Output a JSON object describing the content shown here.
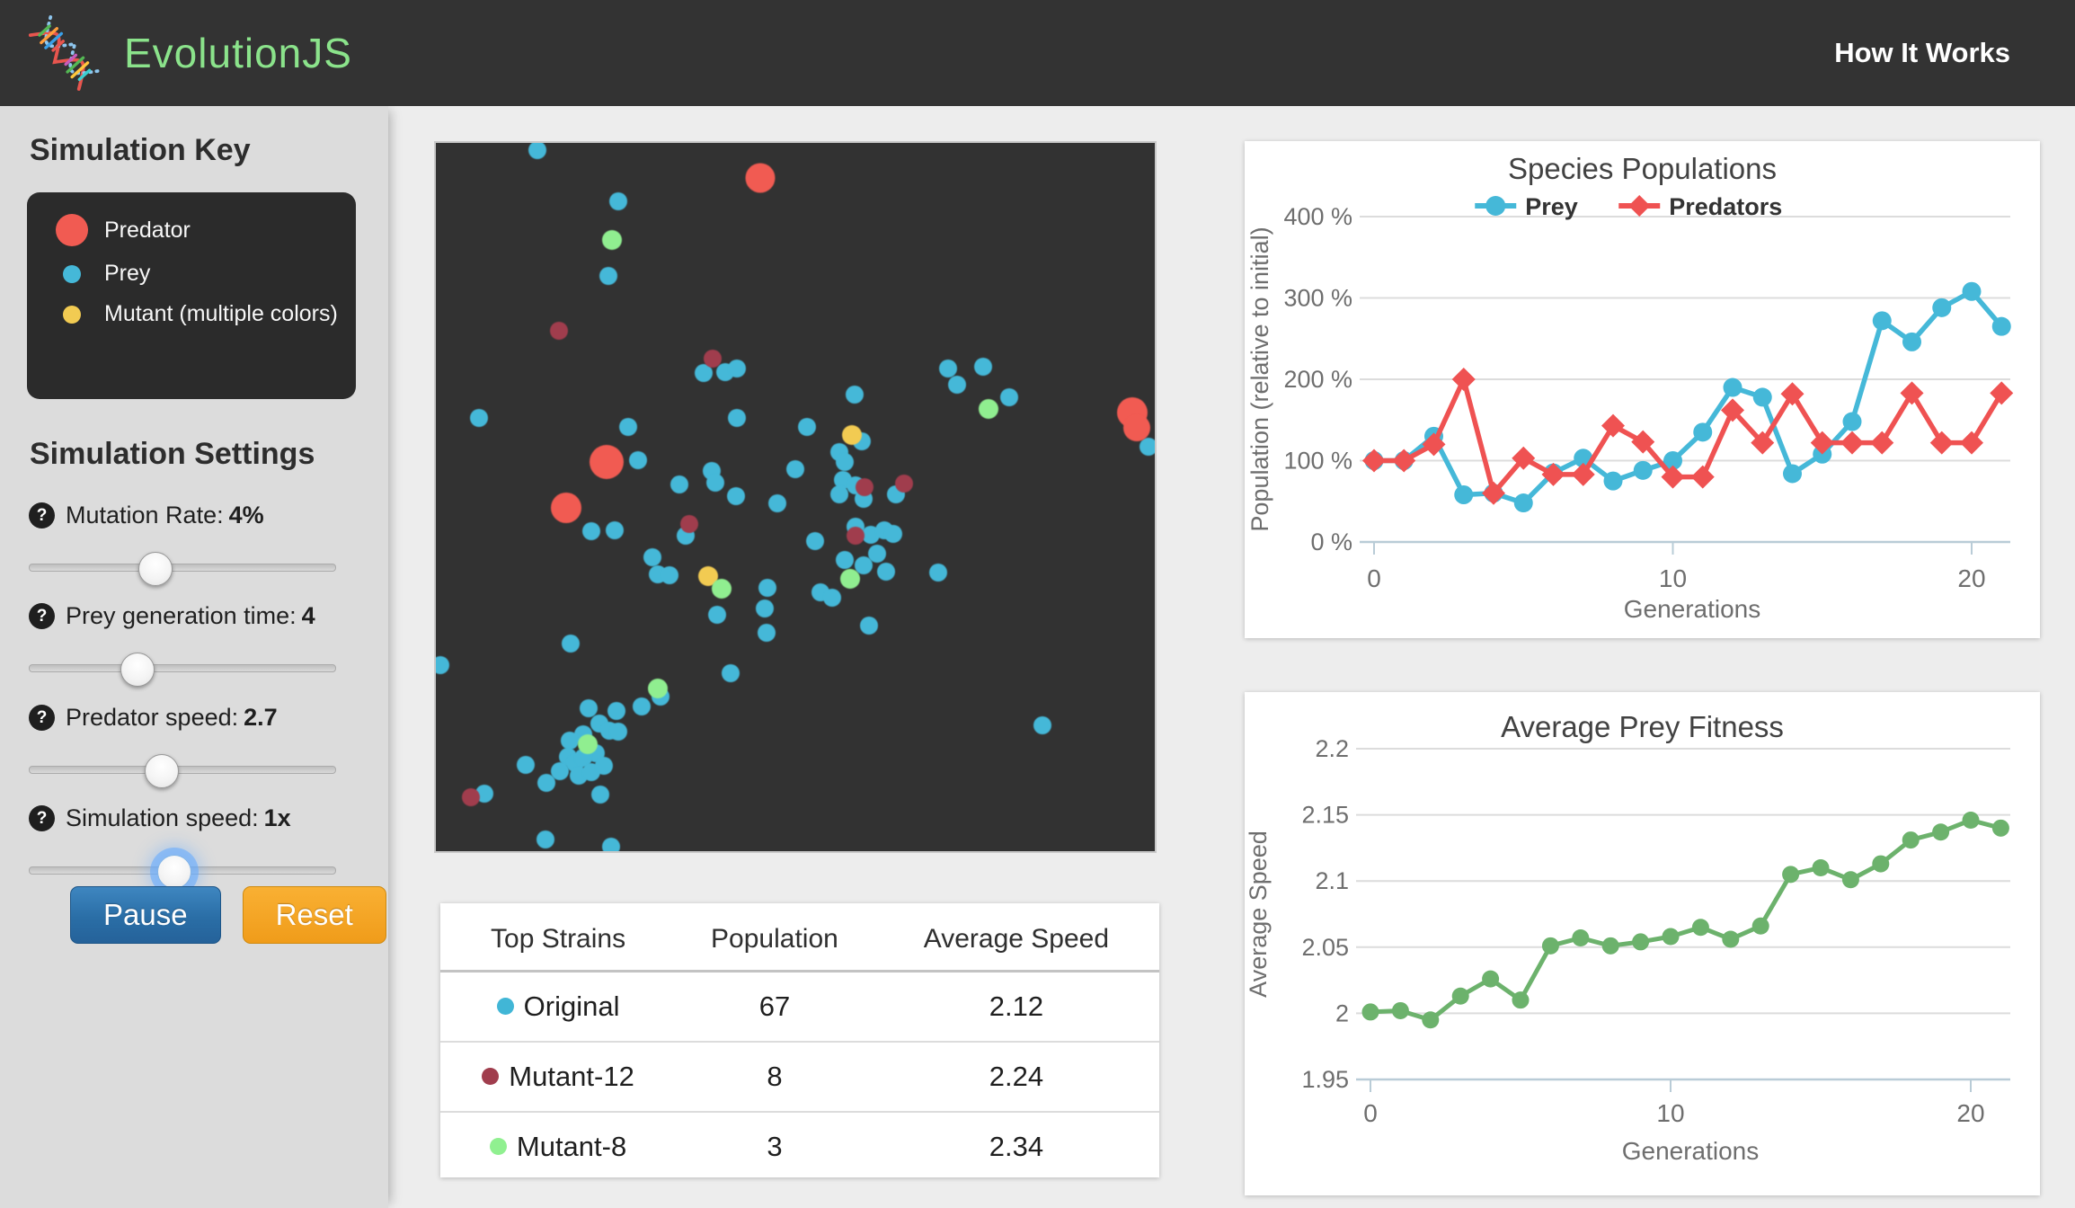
{
  "header": {
    "app_name": "EvolutionJS",
    "how_it_works": "How It Works"
  },
  "sidebar": {
    "key_title": "Simulation Key",
    "key_items": [
      {
        "label": "Predator",
        "color": "#f15b52",
        "size": 36
      },
      {
        "label": "Prey",
        "color": "#45b8d8",
        "size": 20
      },
      {
        "label": "Mutant (multiple colors)",
        "color": "#f2cb52",
        "size": 20
      }
    ],
    "settings_title": "Simulation Settings",
    "sliders": [
      {
        "label": "Mutation Rate:",
        "value": "4%",
        "position_pct": 41,
        "focused": false
      },
      {
        "label": "Prey generation time:",
        "value": "4",
        "position_pct": 35,
        "focused": false
      },
      {
        "label": "Predator speed:",
        "value": "2.7",
        "position_pct": 43,
        "focused": false
      },
      {
        "label": "Simulation speed:",
        "value": "1x",
        "position_pct": 47,
        "focused": true
      }
    ],
    "pause_label": "Pause",
    "reset_label": "Reset",
    "button_colors": {
      "pause": "#2a6ea6",
      "reset": "#f0a024"
    }
  },
  "simulation": {
    "colors": {
      "prey": "#45b8d8",
      "predator": "#f15b52",
      "mutant12": "#a03d4d",
      "mutant_yellow": "#f2cb52",
      "mutant_green": "#90ee90"
    },
    "predators": [
      [
        45.1,
        4.9,
        33
      ],
      [
        23.8,
        45.1,
        38
      ],
      [
        18.1,
        51.5,
        34
      ],
      [
        96.9,
        38.1,
        34
      ],
      [
        97.5,
        40.2,
        30
      ]
    ],
    "mutant12": [
      [
        17.1,
        26.5
      ],
      [
        38.5,
        30.5
      ],
      [
        35.3,
        53.8
      ],
      [
        65.1,
        48.1
      ],
      [
        59.6,
        48.6
      ],
      [
        4.9,
        92.4
      ],
      [
        58.4,
        55.5
      ]
    ],
    "mutant_yellow": [
      [
        57.9,
        41.2
      ],
      [
        37.9,
        61.2
      ]
    ],
    "mutant_green": [
      [
        24.5,
        13.7
      ],
      [
        76.9,
        37.6
      ],
      [
        39.8,
        62.9
      ],
      [
        30.9,
        77.0
      ],
      [
        21.1,
        84.9
      ],
      [
        57.6,
        61.5
      ]
    ],
    "prey": [
      [
        14.1,
        1.0
      ],
      [
        25.4,
        8.2
      ],
      [
        24.0,
        18.8
      ],
      [
        37.3,
        32.5
      ],
      [
        40.3,
        32.4
      ],
      [
        41.9,
        31.9
      ],
      [
        6.0,
        38.8
      ],
      [
        26.8,
        40.1
      ],
      [
        28.1,
        44.8
      ],
      [
        33.9,
        48.2
      ],
      [
        38.4,
        46.3
      ],
      [
        38.9,
        48.0
      ],
      [
        41.8,
        49.9
      ],
      [
        50.0,
        46.1
      ],
      [
        41.9,
        38.8
      ],
      [
        47.5,
        50.9
      ],
      [
        71.3,
        31.9
      ],
      [
        76.1,
        31.6
      ],
      [
        72.5,
        34.1
      ],
      [
        79.8,
        35.9
      ],
      [
        58.3,
        35.5
      ],
      [
        51.6,
        40.1
      ],
      [
        59.3,
        42.1
      ],
      [
        56.1,
        43.7
      ],
      [
        56.9,
        45.1
      ],
      [
        56.6,
        47.6
      ],
      [
        58.4,
        48.4
      ],
      [
        56.1,
        49.6
      ],
      [
        59.5,
        50.3
      ],
      [
        64.0,
        49.6
      ],
      [
        99.1,
        42.9
      ],
      [
        21.6,
        54.8
      ],
      [
        24.9,
        54.7
      ],
      [
        34.8,
        55.5
      ],
      [
        30.1,
        58.5
      ],
      [
        30.9,
        60.9
      ],
      [
        32.5,
        61.0
      ],
      [
        46.1,
        62.8
      ],
      [
        39.1,
        66.6
      ],
      [
        45.8,
        65.7
      ],
      [
        46.0,
        69.2
      ],
      [
        18.8,
        70.7
      ],
      [
        0.6,
        73.7
      ],
      [
        41.0,
        74.9
      ],
      [
        31.3,
        78.2
      ],
      [
        21.3,
        79.8
      ],
      [
        25.1,
        80.2
      ],
      [
        28.6,
        79.6
      ],
      [
        22.8,
        82.0
      ],
      [
        24.1,
        83.0
      ],
      [
        25.4,
        83.1
      ],
      [
        20.5,
        83.5
      ],
      [
        18.6,
        84.4
      ],
      [
        22.3,
        86.2
      ],
      [
        18.4,
        86.7
      ],
      [
        19.4,
        87.6
      ],
      [
        20.5,
        86.8
      ],
      [
        12.5,
        87.8
      ],
      [
        17.3,
        88.7
      ],
      [
        19.9,
        89.3
      ],
      [
        21.6,
        88.8
      ],
      [
        23.4,
        87.9
      ],
      [
        15.4,
        90.4
      ],
      [
        6.8,
        91.9
      ],
      [
        22.9,
        92.0
      ],
      [
        15.3,
        98.4
      ],
      [
        24.4,
        99.4
      ],
      [
        58.4,
        54.2
      ],
      [
        52.8,
        56.2
      ],
      [
        60.5,
        55.3
      ],
      [
        62.4,
        54.7
      ],
      [
        63.6,
        55.2
      ],
      [
        61.4,
        58.0
      ],
      [
        56.9,
        58.9
      ],
      [
        59.5,
        59.6
      ],
      [
        62.6,
        60.5
      ],
      [
        69.9,
        60.7
      ],
      [
        53.5,
        63.5
      ],
      [
        55.1,
        64.2
      ],
      [
        60.3,
        68.1
      ],
      [
        84.4,
        82.2
      ]
    ]
  },
  "strain_table": {
    "headers": [
      "Top Strains",
      "Population",
      "Average Speed"
    ],
    "rows": [
      {
        "strain": "Original",
        "color": "#41b6d6",
        "population": "67",
        "avg_speed": "2.12"
      },
      {
        "strain": "Mutant-12",
        "color": "#a03d4d",
        "population": "8",
        "avg_speed": "2.24"
      },
      {
        "strain": "Mutant-8",
        "color": "#90f090",
        "population": "3",
        "avg_speed": "2.34"
      }
    ]
  },
  "chart_data": [
    {
      "type": "line",
      "title": "Species Populations",
      "xlabel": "Generations",
      "ylabel": "Population (relative to initial)",
      "legend": true,
      "legend_position": "top",
      "grid": true,
      "x": [
        0,
        1,
        2,
        3,
        4,
        5,
        6,
        7,
        8,
        9,
        10,
        11,
        12,
        13,
        14,
        15,
        16,
        17,
        18,
        19,
        20,
        21
      ],
      "xlim": [
        0,
        21.5
      ],
      "xticks": [
        0,
        10,
        20
      ],
      "xtick_labels": [
        "0",
        "10",
        "20"
      ],
      "ylim": [
        0,
        400
      ],
      "yticks": [
        0,
        100,
        200,
        300,
        400
      ],
      "ytick_labels": [
        "0 %",
        "100 %",
        "200 %",
        "300 %",
        "400 %"
      ],
      "series": [
        {
          "name": "Prey",
          "color": "#45b8d8",
          "marker": "circle",
          "values": [
            100,
            100,
            130,
            58,
            60,
            48,
            85,
            103,
            75,
            88,
            100,
            135,
            190,
            178,
            84,
            108,
            148,
            272,
            246,
            288,
            308,
            265
          ]
        },
        {
          "name": "Predators",
          "color": "#ef5252",
          "marker": "diamond",
          "values": [
            100,
            100,
            120,
            200,
            60,
            103,
            83,
            83,
            143,
            123,
            80,
            80,
            162,
            122,
            182,
            122,
            122,
            122,
            183,
            122,
            122,
            183
          ]
        }
      ]
    },
    {
      "type": "line",
      "title": "Average Prey Fitness",
      "xlabel": "Generations",
      "ylabel": "Average Speed",
      "legend": false,
      "legend_position": "none",
      "grid": true,
      "x": [
        0,
        1,
        2,
        3,
        4,
        5,
        6,
        7,
        8,
        9,
        10,
        11,
        12,
        13,
        14,
        15,
        16,
        17,
        18,
        19,
        20,
        21
      ],
      "xlim": [
        0,
        21.5
      ],
      "xticks": [
        0,
        10,
        20
      ],
      "xtick_labels": [
        "0",
        "10",
        "20"
      ],
      "ylim": [
        1.95,
        2.2
      ],
      "yticks": [
        1.95,
        2,
        2.05,
        2.1,
        2.15,
        2.2
      ],
      "ytick_labels": [
        "1.95",
        "2",
        "2.05",
        "2.1",
        "2.15",
        "2.2"
      ],
      "series": [
        {
          "name": "Average Speed",
          "color": "#6cb26c",
          "marker": "circle",
          "values": [
            2.001,
            2.002,
            1.995,
            2.013,
            2.026,
            2.01,
            2.051,
            2.057,
            2.051,
            2.054,
            2.058,
            2.065,
            2.056,
            2.066,
            2.105,
            2.11,
            2.101,
            2.113,
            2.131,
            2.137,
            2.146,
            2.14
          ]
        }
      ]
    }
  ]
}
